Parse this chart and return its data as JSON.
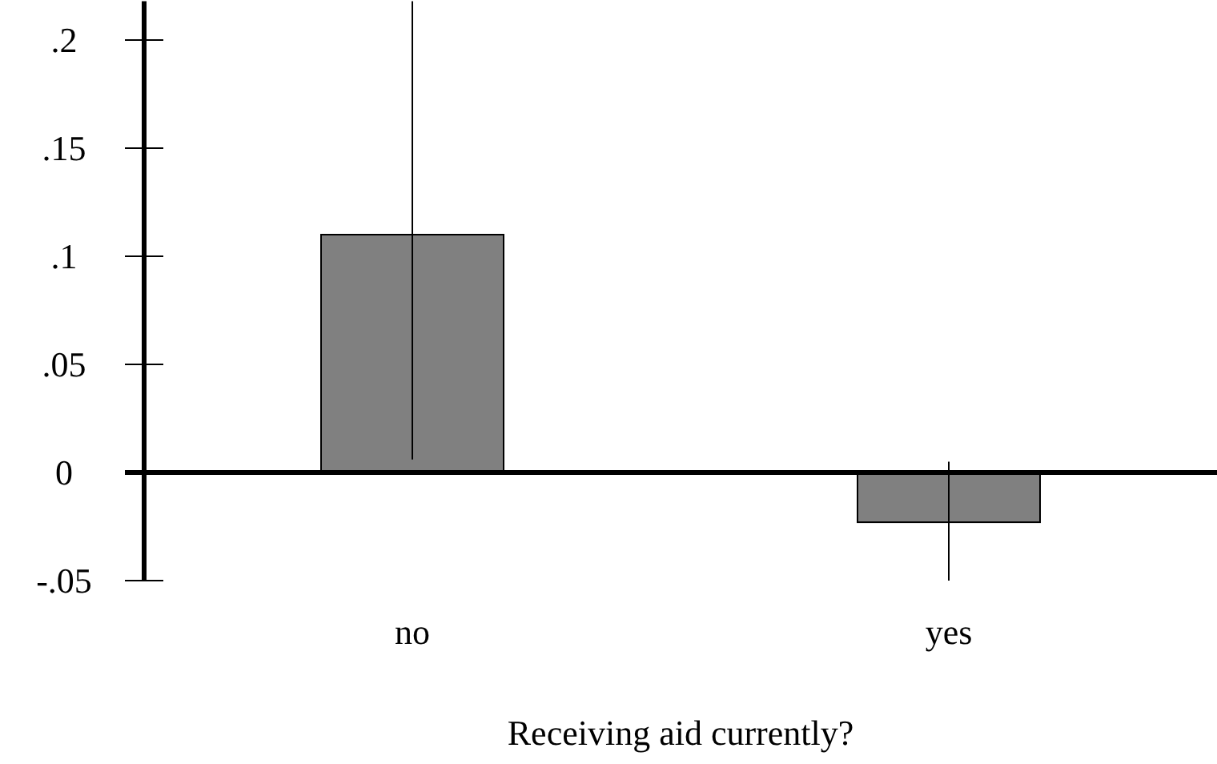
{
  "chart_data": {
    "type": "bar",
    "xlabel": "Receiving aid currently?",
    "categories": [
      "no",
      "yes"
    ],
    "values": [
      0.11,
      -0.023
    ],
    "errors": [
      [
        0.006,
        0.218
      ],
      [
        -0.05,
        0.005
      ]
    ],
    "color": "#808080",
    "ylim": [
      -0.05,
      0.218
    ],
    "yticks": [
      {
        "value": -0.05,
        "label": "-.05"
      },
      0,
      {
        "value": 0.05,
        "label": ".05"
      },
      {
        "value": 0.1,
        "label": ".1"
      },
      {
        "value": 0.15,
        "label": ".15"
      },
      {
        "value": 0.2,
        "label": ".2"
      }
    ],
    "ref_lines": [
      {
        "axis": "y",
        "value": 0,
        "color": "#000000"
      }
    ],
    "grid": false
  }
}
